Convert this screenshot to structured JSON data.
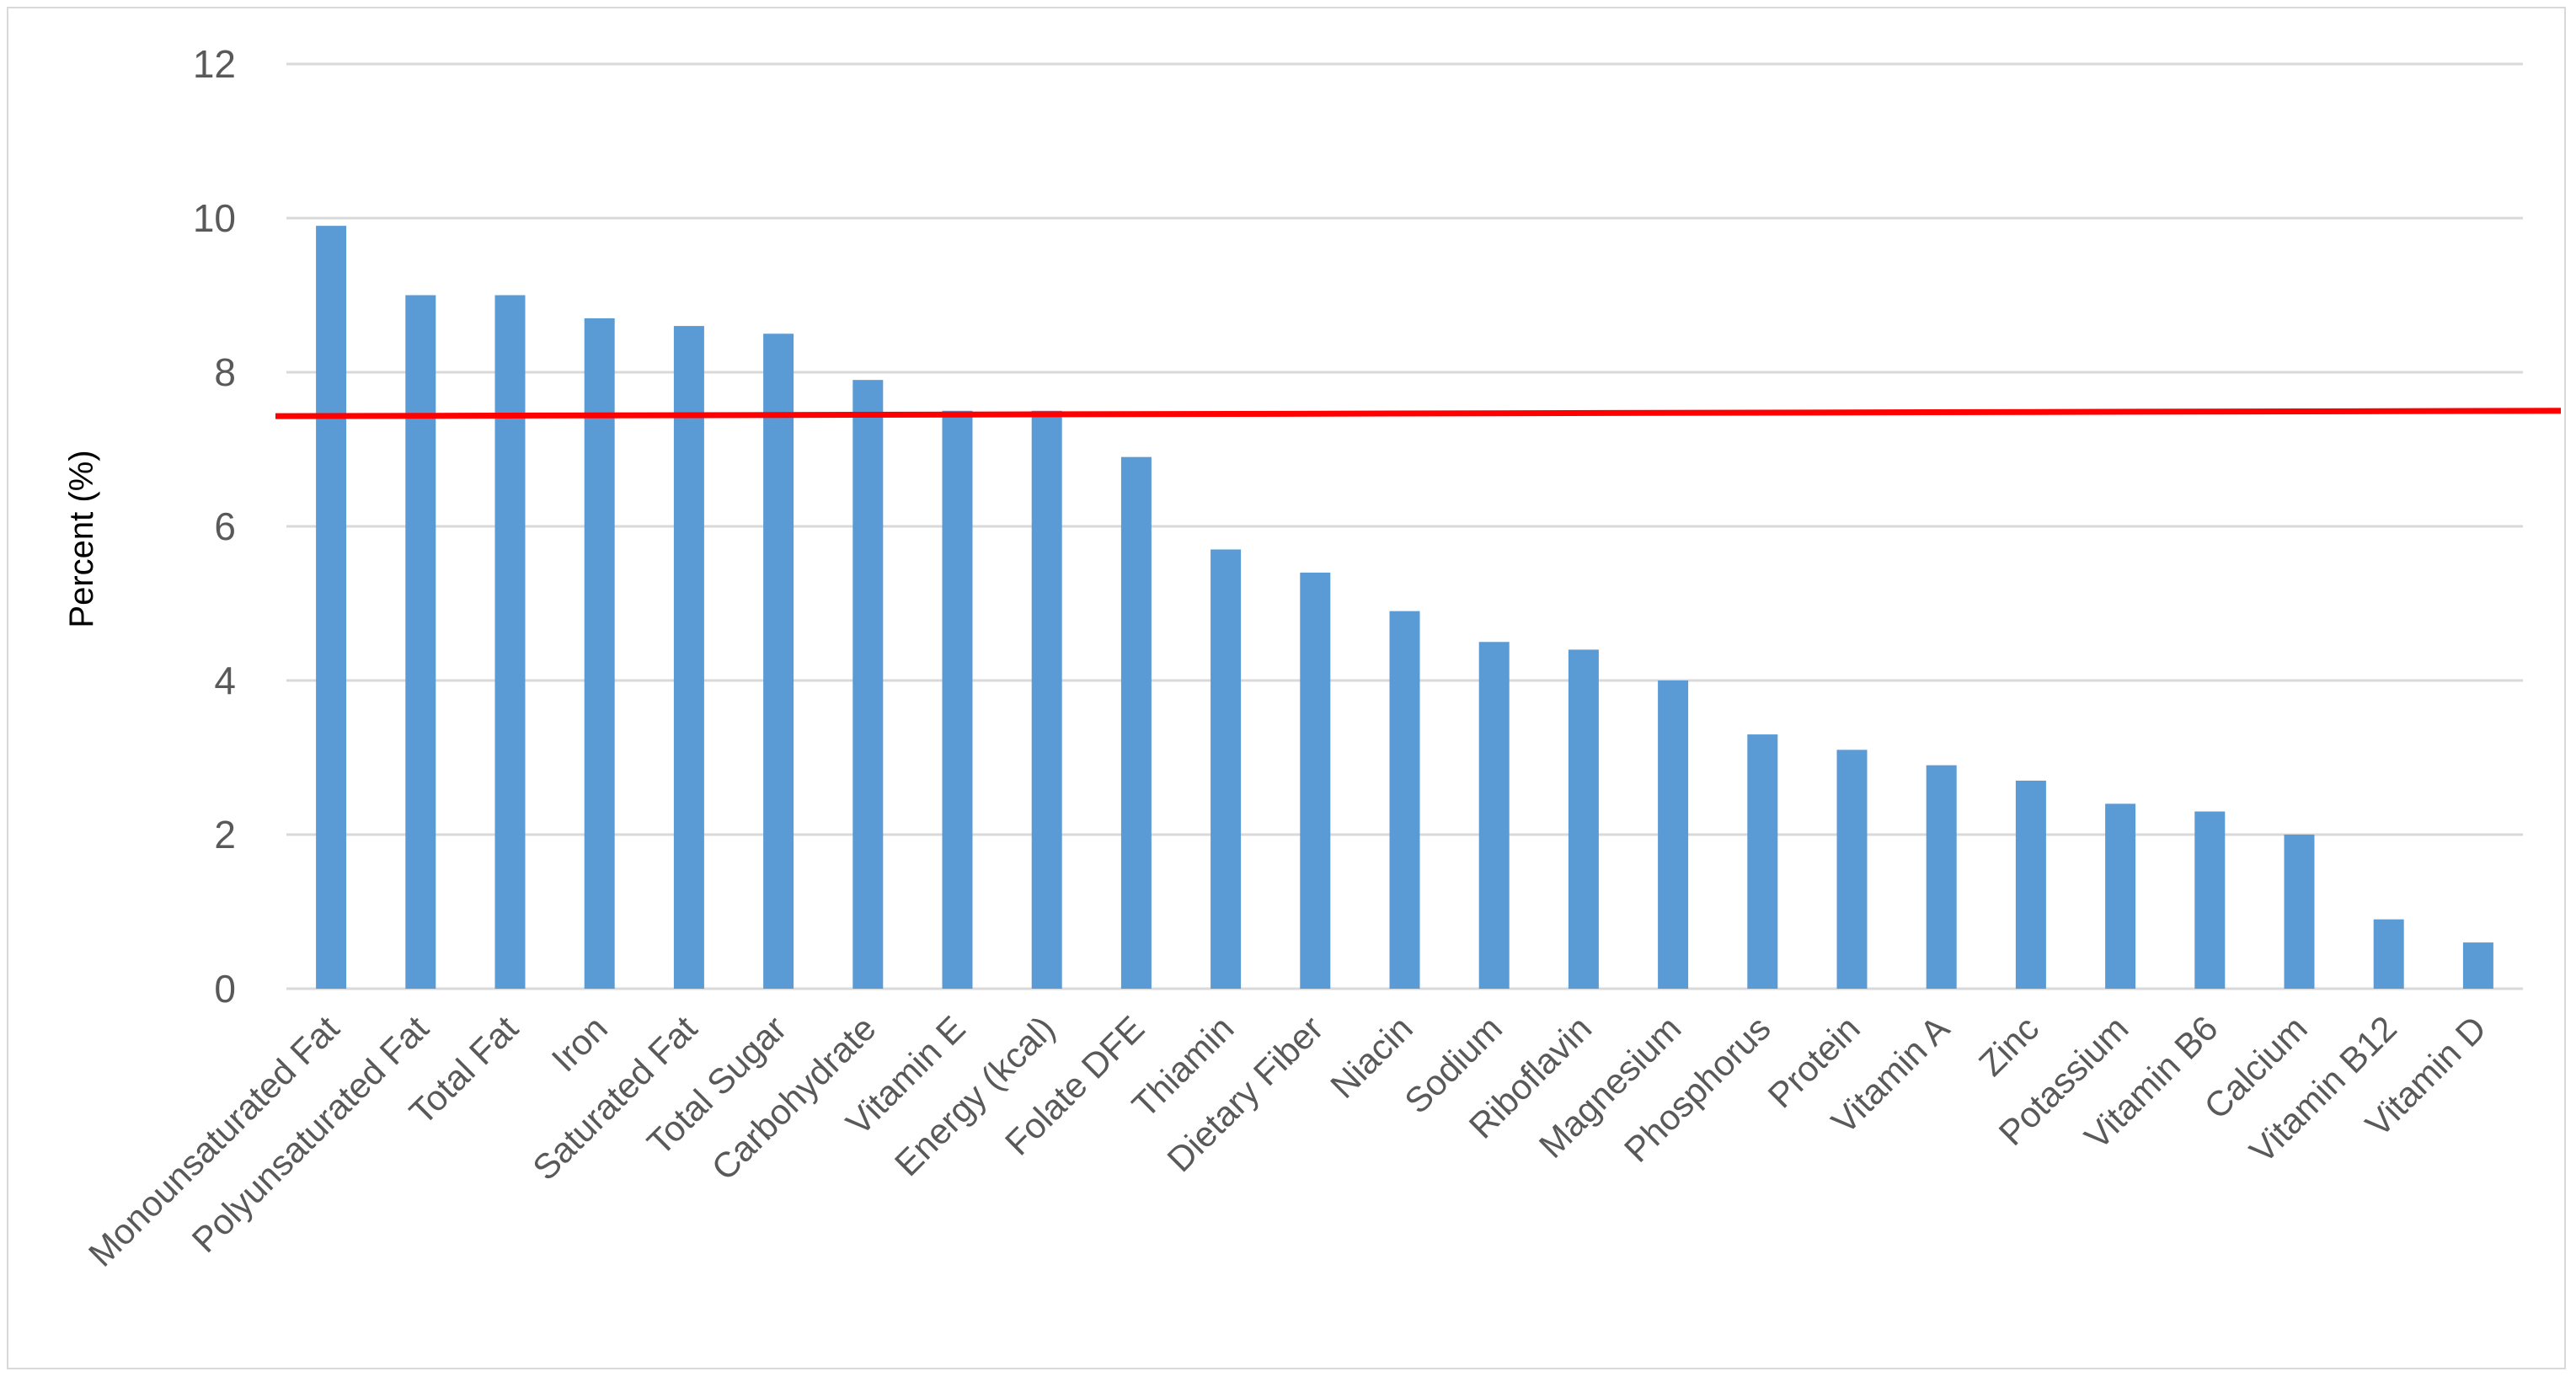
{
  "chart_data": {
    "type": "bar",
    "title": "",
    "xlabel": "",
    "ylabel": "Percent (%)",
    "ylim": [
      0,
      12
    ],
    "yticks": [
      0,
      2,
      4,
      6,
      8,
      10,
      12
    ],
    "grid": true,
    "legend": "none",
    "categories": [
      "Monounsaturated Fat",
      "Polyunsaturated Fat",
      "Total Fat",
      "Iron",
      "Saturated Fat",
      "Total Sugar",
      "Carbohydrate",
      "Vitamin E",
      "Energy (kcal)",
      "Folate DFE",
      "Thiamin",
      "Dietary Fiber",
      "Niacin",
      "Sodium",
      "Riboflavin",
      "Magnesium",
      "Phosphorus",
      "Protein",
      "Vitamin A",
      "Zinc",
      "Potassium",
      "Vitamin B6",
      "Calcium",
      "Vitamin B12",
      "Vitamin D"
    ],
    "values": [
      9.9,
      9.0,
      9.0,
      8.7,
      8.6,
      8.5,
      7.9,
      7.5,
      7.5,
      6.9,
      5.7,
      5.4,
      4.9,
      4.5,
      4.4,
      4.0,
      3.3,
      3.1,
      2.9,
      2.7,
      2.4,
      2.3,
      2.0,
      0.9,
      0.6
    ],
    "reference_line": {
      "y_start": 7.43,
      "y_end": 7.5,
      "color": "#ff0000"
    },
    "colors": {
      "bar": "#5b9bd5",
      "grid": "#d9d9d9",
      "text": "#595959"
    }
  }
}
